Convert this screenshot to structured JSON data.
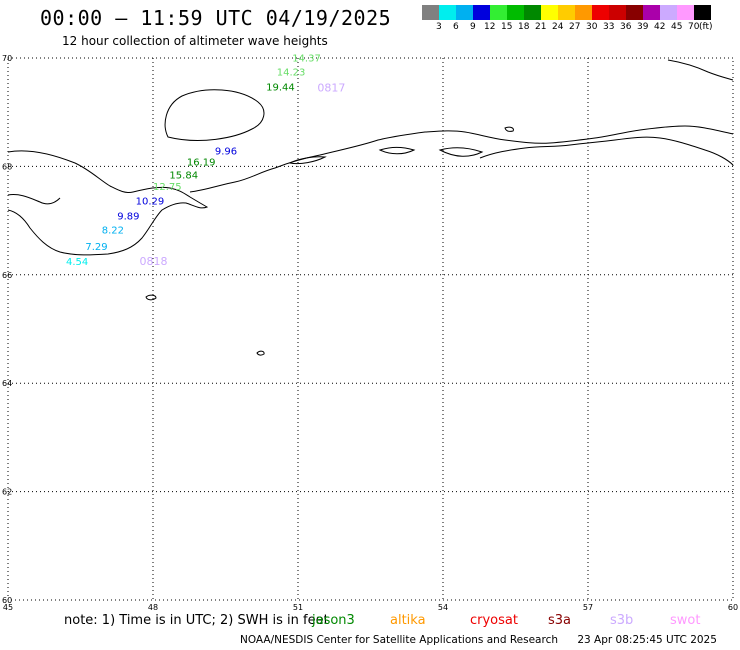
{
  "header": {
    "title": "00:00 – 11:59 UTC 04/19/2025",
    "subtitle": "12 hour collection of altimeter wave heights"
  },
  "legend": {
    "colors": [
      "#808080",
      "#00eeee",
      "#00b0f0",
      "#0000dd",
      "#33ee33",
      "#00bb00",
      "#008800",
      "#ffff00",
      "#ffcc00",
      "#ff9900",
      "#ee0000",
      "#cc0000",
      "#880000",
      "#aa00aa",
      "#ccaaff",
      "#ff99ff",
      "#000000"
    ],
    "labels": [
      "3",
      "6",
      "9",
      "12",
      "15",
      "18",
      "21",
      "24",
      "27",
      "30",
      "33",
      "36",
      "39",
      "42",
      "45",
      "70"
    ],
    "unit": "(ft)"
  },
  "map": {
    "lat_ticks": [
      "70",
      "68",
      "66",
      "64",
      "62",
      "60"
    ],
    "lon_ticks": [
      "45",
      "48",
      "51",
      "54",
      "57",
      "60"
    ],
    "observations": [
      {
        "value": "14.37",
        "lon": 50.88,
        "lat": 69.94,
        "color": "#66dd66"
      },
      {
        "value": "14.23",
        "lon": 50.56,
        "lat": 69.68,
        "color": "#66dd66"
      },
      {
        "value": "19.44",
        "lon": 50.34,
        "lat": 69.4,
        "color": "#008800"
      },
      {
        "value": "9.96",
        "lon": 49.28,
        "lat": 68.22,
        "color": "#0000dd"
      },
      {
        "value": "16.19",
        "lon": 48.7,
        "lat": 68.02,
        "color": "#008800"
      },
      {
        "value": "15.84",
        "lon": 48.34,
        "lat": 67.78,
        "color": "#008800"
      },
      {
        "value": "12.75",
        "lon": 48.0,
        "lat": 67.56,
        "color": "#66dd66"
      },
      {
        "value": "10.29",
        "lon": 47.64,
        "lat": 67.3,
        "color": "#0000dd"
      },
      {
        "value": "9.89",
        "lon": 47.26,
        "lat": 67.02,
        "color": "#0000dd"
      },
      {
        "value": "8.22",
        "lon": 46.94,
        "lat": 66.76,
        "color": "#00b0f0"
      },
      {
        "value": "7.29",
        "lon": 46.6,
        "lat": 66.46,
        "color": "#00b0f0"
      },
      {
        "value": "4.54",
        "lon": 46.2,
        "lat": 66.18,
        "color": "#00eeee"
      }
    ],
    "pass_labels": [
      {
        "text": "0817",
        "lon": 51.4,
        "lat": 69.38,
        "color": "#ccaaff"
      },
      {
        "text": "0818",
        "lon": 47.72,
        "lat": 66.18,
        "color": "#ccaaff"
      }
    ]
  },
  "footer": {
    "note": "note: 1) Time is in UTC; 2) SWH is in feet",
    "satellites": [
      {
        "name": "jason3",
        "color": "#008800"
      },
      {
        "name": "altika",
        "color": "#ff9900"
      },
      {
        "name": "cryosat",
        "color": "#ee0000"
      },
      {
        "name": "s3a",
        "color": "#880000"
      },
      {
        "name": "s3b",
        "color": "#ccaaff"
      },
      {
        "name": "swot",
        "color": "#ff99ff"
      }
    ],
    "credit": "NOAA/NESDIS Center for Satellite Applications and Research",
    "timestamp": "23 Apr 08:25:45 UTC 2025"
  }
}
